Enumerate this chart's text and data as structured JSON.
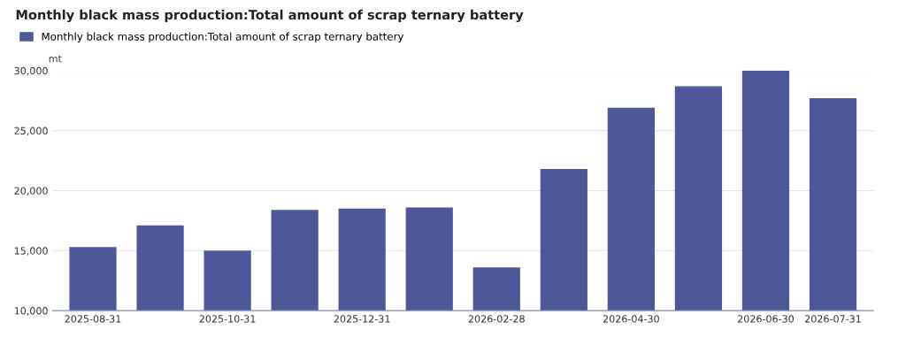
{
  "chart_data": {
    "type": "bar",
    "title": "Monthly black mass production:Total amount of scrap ternary battery",
    "ylabel": "mt",
    "categories": [
      "2025-08-31",
      null,
      "2025-10-31",
      null,
      "2025-12-31",
      null,
      "2026-02-28",
      null,
      "2026-04-30",
      null,
      "2026-06-30",
      "2026-07-31"
    ],
    "series": [
      {
        "name": "Monthly black mass production:Total amount of scrap ternary battery",
        "color": "#4e5899",
        "values": [
          15300,
          17100,
          15000,
          18400,
          18500,
          18600,
          13600,
          21800,
          26900,
          28700,
          30000,
          27700
        ]
      }
    ],
    "ylim": [
      10000,
      30000
    ],
    "yticks": [
      {
        "value": 10000,
        "label": "10,000"
      },
      {
        "value": 15000,
        "label": "15,000"
      },
      {
        "value": 20000,
        "label": "20,000"
      },
      {
        "value": 25000,
        "label": "25,000"
      },
      {
        "value": 30000,
        "label": "30,000"
      }
    ],
    "grid": "y",
    "legend": "top left"
  }
}
